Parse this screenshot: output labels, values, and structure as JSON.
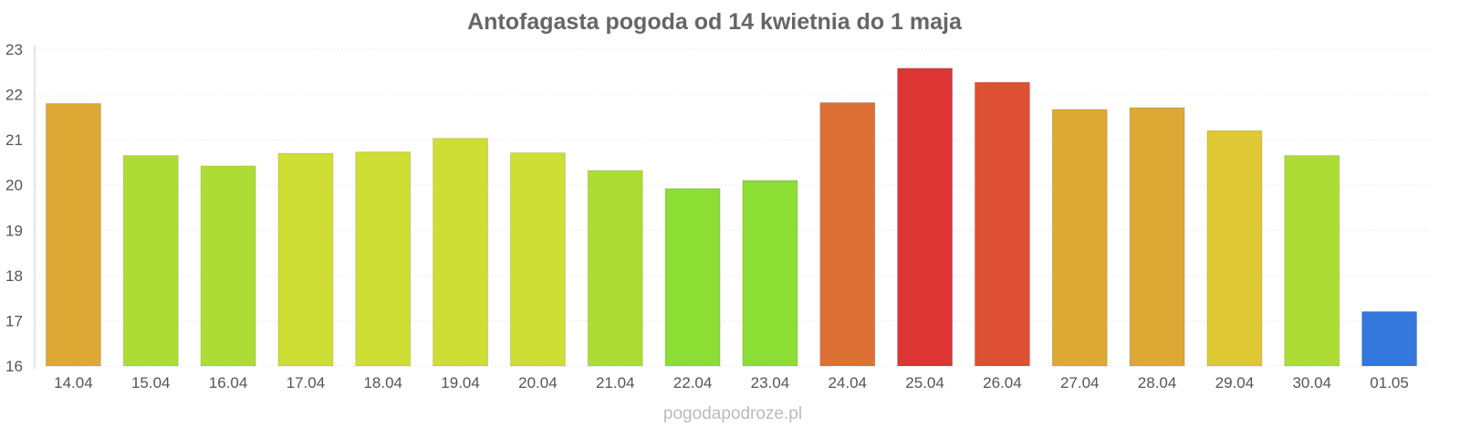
{
  "chart_data": {
    "type": "bar",
    "title": "Antofagasta pogoda od 14 kwietnia do 1 maja",
    "xlabel": "",
    "ylabel": "",
    "ylim": [
      16,
      23
    ],
    "yticks": [
      "16",
      "17",
      "18",
      "19",
      "20",
      "21",
      "22",
      "23"
    ],
    "grid": true,
    "categories": [
      "14.04",
      "15.04",
      "16.04",
      "17.04",
      "18.04",
      "19.04",
      "20.04",
      "21.04",
      "22.04",
      "23.04",
      "24.04",
      "25.04",
      "26.04",
      "27.04",
      "28.04",
      "29.04",
      "30.04",
      "01.05"
    ],
    "values": [
      21.8,
      20.65,
      20.42,
      20.7,
      20.73,
      21.03,
      20.71,
      20.32,
      19.92,
      20.1,
      21.82,
      22.58,
      22.27,
      21.67,
      21.71,
      21.2,
      20.65,
      17.2
    ],
    "colors": [
      "#dea834",
      "#addd34",
      "#addd34",
      "#cede34",
      "#cede34",
      "#cede34",
      "#cede34",
      "#addd34",
      "#8cdd34",
      "#8cdd34",
      "#dd7034",
      "#dd3434",
      "#dd5034",
      "#dea834",
      "#dea834",
      "#dec834",
      "#addd34",
      "#3477dd"
    ]
  },
  "watermark": "pogodapodroze.pl"
}
